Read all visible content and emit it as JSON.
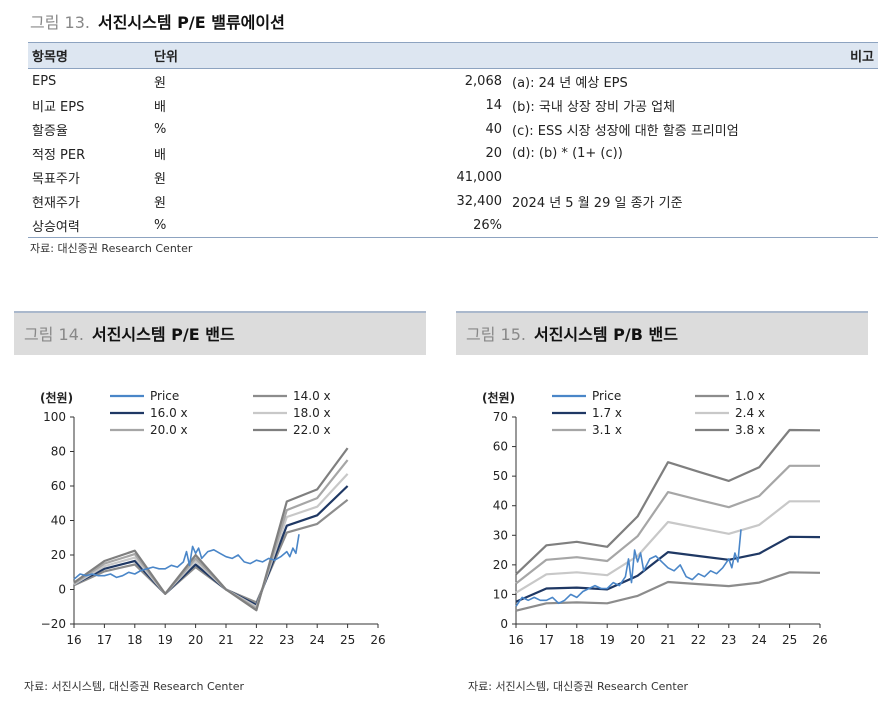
{
  "fig13": {
    "number": "그림 13.",
    "title": "서진시스템 P/E 밸류에이션",
    "headers": {
      "item": "항목명",
      "unit": "단위",
      "note": "비고"
    },
    "rows": [
      {
        "item": "EPS",
        "unit": "원",
        "value": "2,068",
        "note": "(a): 24 년 예상 EPS"
      },
      {
        "item": "비교 EPS",
        "unit": "배",
        "value": "14",
        "note": "(b): 국내 상장 장비 가공 업체"
      },
      {
        "item": "할증율",
        "unit": "%",
        "value": "40",
        "note": "(c): ESS 시장 성장에 대한 할증 프리미엄"
      },
      {
        "item": "적정 PER",
        "unit": "배",
        "value": "20",
        "note": "(d): (b) * (1+ (c))"
      },
      {
        "item": "목표주가",
        "unit": "원",
        "value": "41,000",
        "note": ""
      },
      {
        "item": "현재주가",
        "unit": "원",
        "value": "32,400",
        "note": "2024 년 5 월 29 일 종가 기준"
      },
      {
        "item": "상승여력",
        "unit": "%",
        "value": "26%",
        "note": ""
      }
    ],
    "source": "자료: 대신증권 Research Center"
  },
  "fig14": {
    "number": "그림 14.",
    "title": "서진시스템 P/E 밴드",
    "source": "자료: 서진시스템, 대신증권 Research Center"
  },
  "fig15": {
    "number": "그림 15.",
    "title": "서진시스템 P/B 밴드",
    "source": "자료: 서진시스템, 대신증권 Research Center"
  },
  "chart_data": [
    {
      "type": "line",
      "title": "서진시스템 P/E 밴드",
      "unit_label": "(천원)",
      "xlim": [
        16,
        26
      ],
      "ylim": [
        -20,
        100
      ],
      "xticks": [
        "16",
        "17",
        "18",
        "19",
        "20",
        "21",
        "22",
        "23",
        "24",
        "25",
        "26"
      ],
      "yticks": [
        "−20",
        "0",
        "20",
        "40",
        "60",
        "80",
        "100"
      ],
      "grid": false,
      "legend": "top-left",
      "x": [
        16,
        17,
        18,
        19,
        20,
        21,
        22,
        23,
        24,
        25
      ],
      "series": [
        {
          "name": "14.0 x",
          "color": "#8c8c8c",
          "values": [
            2.5,
            10.5,
            14.5,
            -2.5,
            13,
            0,
            -7.5,
            33,
            38,
            52
          ]
        },
        {
          "name": "16.0 x",
          "color": "#1f3864",
          "values": [
            3,
            12,
            16.5,
            -2.5,
            14.5,
            0,
            -9,
            37,
            43,
            60
          ]
        },
        {
          "name": "18.0 x",
          "color": "#c8c8c8",
          "values": [
            3,
            13.5,
            18.5,
            -2.5,
            16.5,
            0,
            -10,
            42,
            48,
            67
          ]
        },
        {
          "name": "20.0 x",
          "color": "#a6a6a6",
          "values": [
            3.5,
            15,
            20.5,
            -2.5,
            18,
            0,
            -11,
            46,
            53,
            75
          ]
        },
        {
          "name": "22.0 x",
          "color": "#7f7f7f",
          "values": [
            4,
            16.5,
            22.5,
            -2.5,
            20,
            0,
            -12,
            51,
            58,
            82
          ]
        },
        {
          "name": "Price",
          "color": "#4a86c8",
          "x": [
            16,
            16.2,
            16.4,
            16.6,
            16.8,
            17,
            17.2,
            17.4,
            17.6,
            17.8,
            18,
            18.2,
            18.4,
            18.6,
            18.8,
            19,
            19.2,
            19.4,
            19.6,
            19.7,
            19.8,
            19.9,
            20,
            20.1,
            20.2,
            20.4,
            20.6,
            20.8,
            21,
            21.2,
            21.4,
            21.6,
            21.8,
            22,
            22.2,
            22.4,
            22.6,
            22.8,
            23,
            23.1,
            23.2,
            23.3,
            23.4
          ],
          "values": [
            6,
            9,
            8,
            9,
            8,
            8,
            9,
            7,
            8,
            10,
            9,
            11,
            12,
            13,
            12,
            12,
            14,
            13,
            16,
            22,
            14,
            25,
            21,
            24,
            18,
            22,
            23,
            21,
            19,
            18,
            20,
            16,
            15,
            17,
            16,
            18,
            17,
            19,
            22,
            19,
            24,
            21,
            32
          ]
        }
      ]
    },
    {
      "type": "line",
      "title": "서진시스템 P/B 밴드",
      "unit_label": "(천원)",
      "xlim": [
        16,
        26
      ],
      "ylim": [
        0,
        70
      ],
      "xticks": [
        "16",
        "17",
        "18",
        "19",
        "20",
        "21",
        "22",
        "23",
        "24",
        "25",
        "26"
      ],
      "yticks": [
        "0",
        "10",
        "20",
        "30",
        "40",
        "50",
        "60",
        "70"
      ],
      "grid": false,
      "legend": "top-left",
      "x": [
        16,
        17,
        18,
        19,
        20,
        21,
        22,
        23,
        24,
        25,
        26
      ],
      "series": [
        {
          "name": "1.0 x",
          "color": "#8c8c8c",
          "values": [
            4.5,
            7,
            7.3,
            7,
            9.5,
            14.2,
            13.5,
            12.8,
            14,
            17.5,
            17.3
          ]
        },
        {
          "name": "1.7 x",
          "color": "#1f3864",
          "values": [
            7.5,
            12,
            12.3,
            11.7,
            16.3,
            24.3,
            23,
            21.7,
            23.8,
            29.5,
            29.4
          ]
        },
        {
          "name": "2.4 x",
          "color": "#c8c8c8",
          "values": [
            10.6,
            16.8,
            17.5,
            16.5,
            23,
            34.5,
            32.5,
            30.5,
            33.5,
            41.5,
            41.5
          ]
        },
        {
          "name": "3.1 x",
          "color": "#a6a6a6",
          "values": [
            13.7,
            21.7,
            22.6,
            21.3,
            29.7,
            44.6,
            42,
            39.5,
            43.3,
            53.5,
            53.5
          ]
        },
        {
          "name": "3.8 x",
          "color": "#7f7f7f",
          "values": [
            16.8,
            26.6,
            27.8,
            26.1,
            36.4,
            54.7,
            51.5,
            48.4,
            53,
            65.6,
            65.5
          ]
        },
        {
          "name": "Price",
          "color": "#4a86c8",
          "x": [
            16,
            16.2,
            16.4,
            16.6,
            16.8,
            17,
            17.2,
            17.4,
            17.6,
            17.8,
            18,
            18.2,
            18.4,
            18.6,
            18.8,
            19,
            19.2,
            19.4,
            19.6,
            19.7,
            19.8,
            19.9,
            20,
            20.1,
            20.2,
            20.4,
            20.6,
            20.8,
            21,
            21.2,
            21.4,
            21.6,
            21.8,
            22,
            22.2,
            22.4,
            22.6,
            22.8,
            23,
            23.1,
            23.2,
            23.3,
            23.4
          ],
          "values": [
            6,
            9,
            8,
            9,
            8,
            8,
            9,
            7,
            8,
            10,
            9,
            11,
            12,
            13,
            12,
            12,
            14,
            13,
            16,
            22,
            14,
            25,
            21,
            24,
            18,
            22,
            23,
            21,
            19,
            18,
            20,
            16,
            15,
            17,
            16,
            18,
            17,
            19,
            22,
            19,
            24,
            21,
            32
          ]
        }
      ]
    }
  ]
}
